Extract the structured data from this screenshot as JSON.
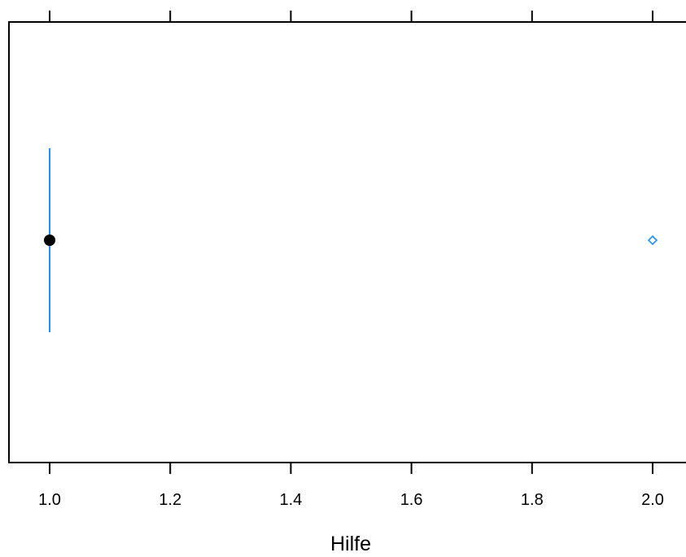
{
  "chart_data": {
    "type": "box",
    "xlabel": "Hilfe",
    "xlim": [
      0.93,
      2.055
    ],
    "x_ticks": [
      1.0,
      1.2,
      1.4,
      1.6,
      1.8,
      2.0
    ],
    "x_tick_labels": [
      "1.0",
      "1.2",
      "1.4",
      "1.6",
      "1.8",
      "2.0"
    ],
    "orientation": "horizontal",
    "box": {
      "median": 1.0,
      "q1": 1.0,
      "q3": 1.0,
      "whisker_low": 1.0,
      "whisker_high": 1.0
    },
    "outliers": [
      2.0
    ],
    "grid": false,
    "top_ticks": true,
    "colors": {
      "whisker": "#1E90FF",
      "median_dot": "#000000",
      "outlier": "#1E90FF",
      "frame": "#000000"
    }
  }
}
